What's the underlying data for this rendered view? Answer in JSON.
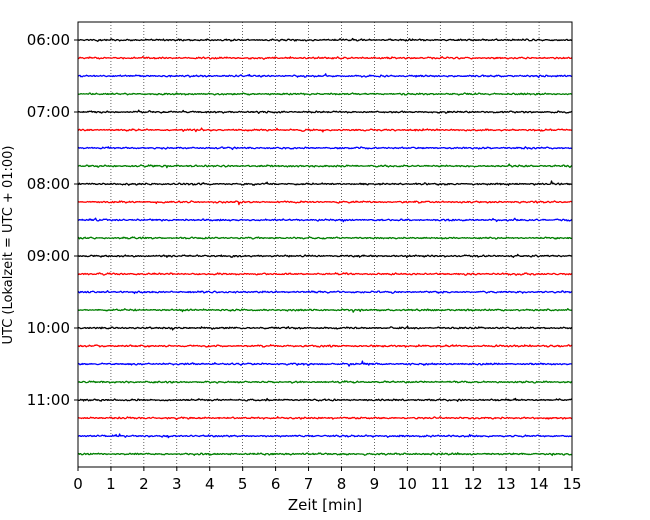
{
  "chart_data": {
    "type": "line",
    "title": "",
    "xlabel": "Zeit  [min]",
    "ylabel": "UTC (Lokalzeit = UTC + 01:00)",
    "xlim": [
      0,
      15
    ],
    "x_ticks": [
      "0",
      "1",
      "2",
      "3",
      "4",
      "5",
      "6",
      "7",
      "8",
      "9",
      "10",
      "11",
      "12",
      "13",
      "14",
      "15"
    ],
    "y_ticks": [
      "06:00",
      "07:00",
      "08:00",
      "09:00",
      "10:00",
      "11:00"
    ],
    "grid": "vertical dotted lines at each minute",
    "trace_interval_min": 15,
    "trace_colors": [
      "#000000",
      "#ff0000",
      "#0000ff",
      "#007f00"
    ],
    "traces": [
      {
        "start": "06:00",
        "color": "#000000"
      },
      {
        "start": "06:15",
        "color": "#ff0000"
      },
      {
        "start": "06:30",
        "color": "#0000ff"
      },
      {
        "start": "06:45",
        "color": "#007f00"
      },
      {
        "start": "07:00",
        "color": "#000000"
      },
      {
        "start": "07:15",
        "color": "#ff0000"
      },
      {
        "start": "07:30",
        "color": "#0000ff"
      },
      {
        "start": "07:45",
        "color": "#007f00"
      },
      {
        "start": "08:00",
        "color": "#000000"
      },
      {
        "start": "08:15",
        "color": "#ff0000"
      },
      {
        "start": "08:30",
        "color": "#0000ff"
      },
      {
        "start": "08:45",
        "color": "#007f00"
      },
      {
        "start": "09:00",
        "color": "#000000"
      },
      {
        "start": "09:15",
        "color": "#ff0000"
      },
      {
        "start": "09:30",
        "color": "#0000ff"
      },
      {
        "start": "09:45",
        "color": "#007f00"
      },
      {
        "start": "10:00",
        "color": "#000000"
      },
      {
        "start": "10:15",
        "color": "#ff0000"
      },
      {
        "start": "10:30",
        "color": "#0000ff"
      },
      {
        "start": "10:45",
        "color": "#007f00"
      },
      {
        "start": "11:00",
        "color": "#000000"
      },
      {
        "start": "11:15",
        "color": "#ff0000"
      },
      {
        "start": "11:30",
        "color": "#0000ff"
      },
      {
        "start": "11:45",
        "color": "#007f00"
      }
    ]
  }
}
